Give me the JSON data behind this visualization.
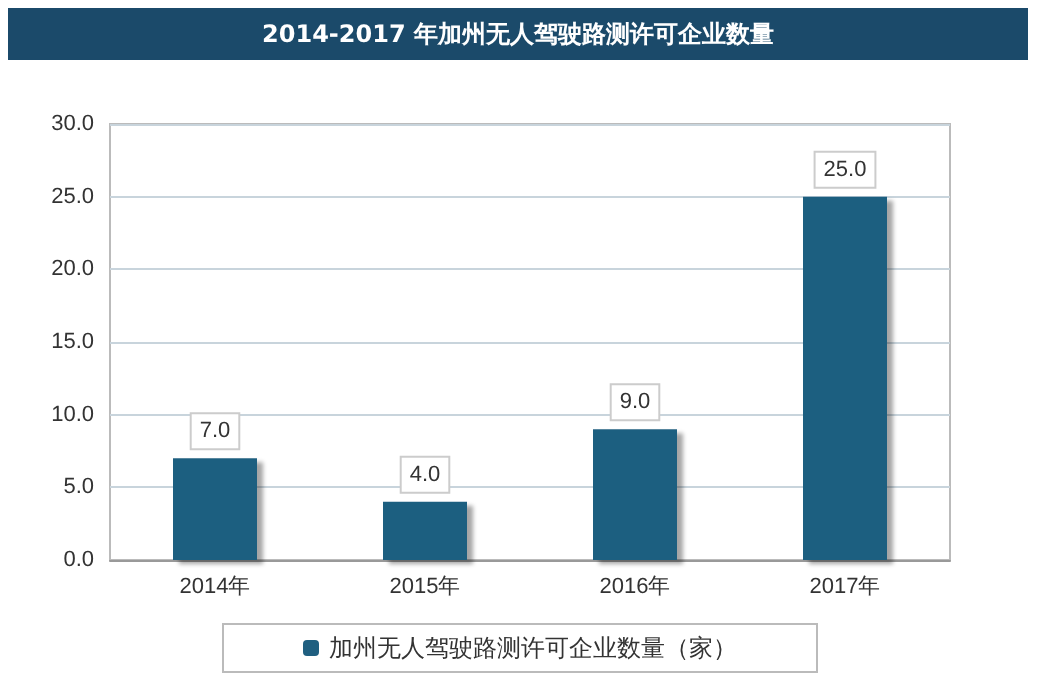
{
  "chart_data": {
    "type": "bar",
    "title": "2014-2017 年加州无人驾驶路测许可企业数量",
    "categories": [
      "2014年",
      "2015年",
      "2016年",
      "2017年"
    ],
    "series": [
      {
        "name": "加州无人驾驶路测许可企业数量（家）",
        "color": "#1f5f80",
        "values": [
          7,
          4,
          9,
          25
        ],
        "value_labels": [
          "7.0",
          "4.0",
          "9.0",
          "25.0"
        ]
      }
    ],
    "ylim": [
      0,
      30
    ],
    "yticks": [
      {
        "value": 0,
        "label": "0.0"
      },
      {
        "value": 5,
        "label": "5.0"
      },
      {
        "value": 10,
        "label": "10.0"
      },
      {
        "value": 15,
        "label": "15.0"
      },
      {
        "value": 20,
        "label": "20.0"
      },
      {
        "value": 25,
        "label": "25.0"
      },
      {
        "value": 30,
        "label": "30.0"
      }
    ],
    "grid": "y",
    "legend": "bottom"
  }
}
